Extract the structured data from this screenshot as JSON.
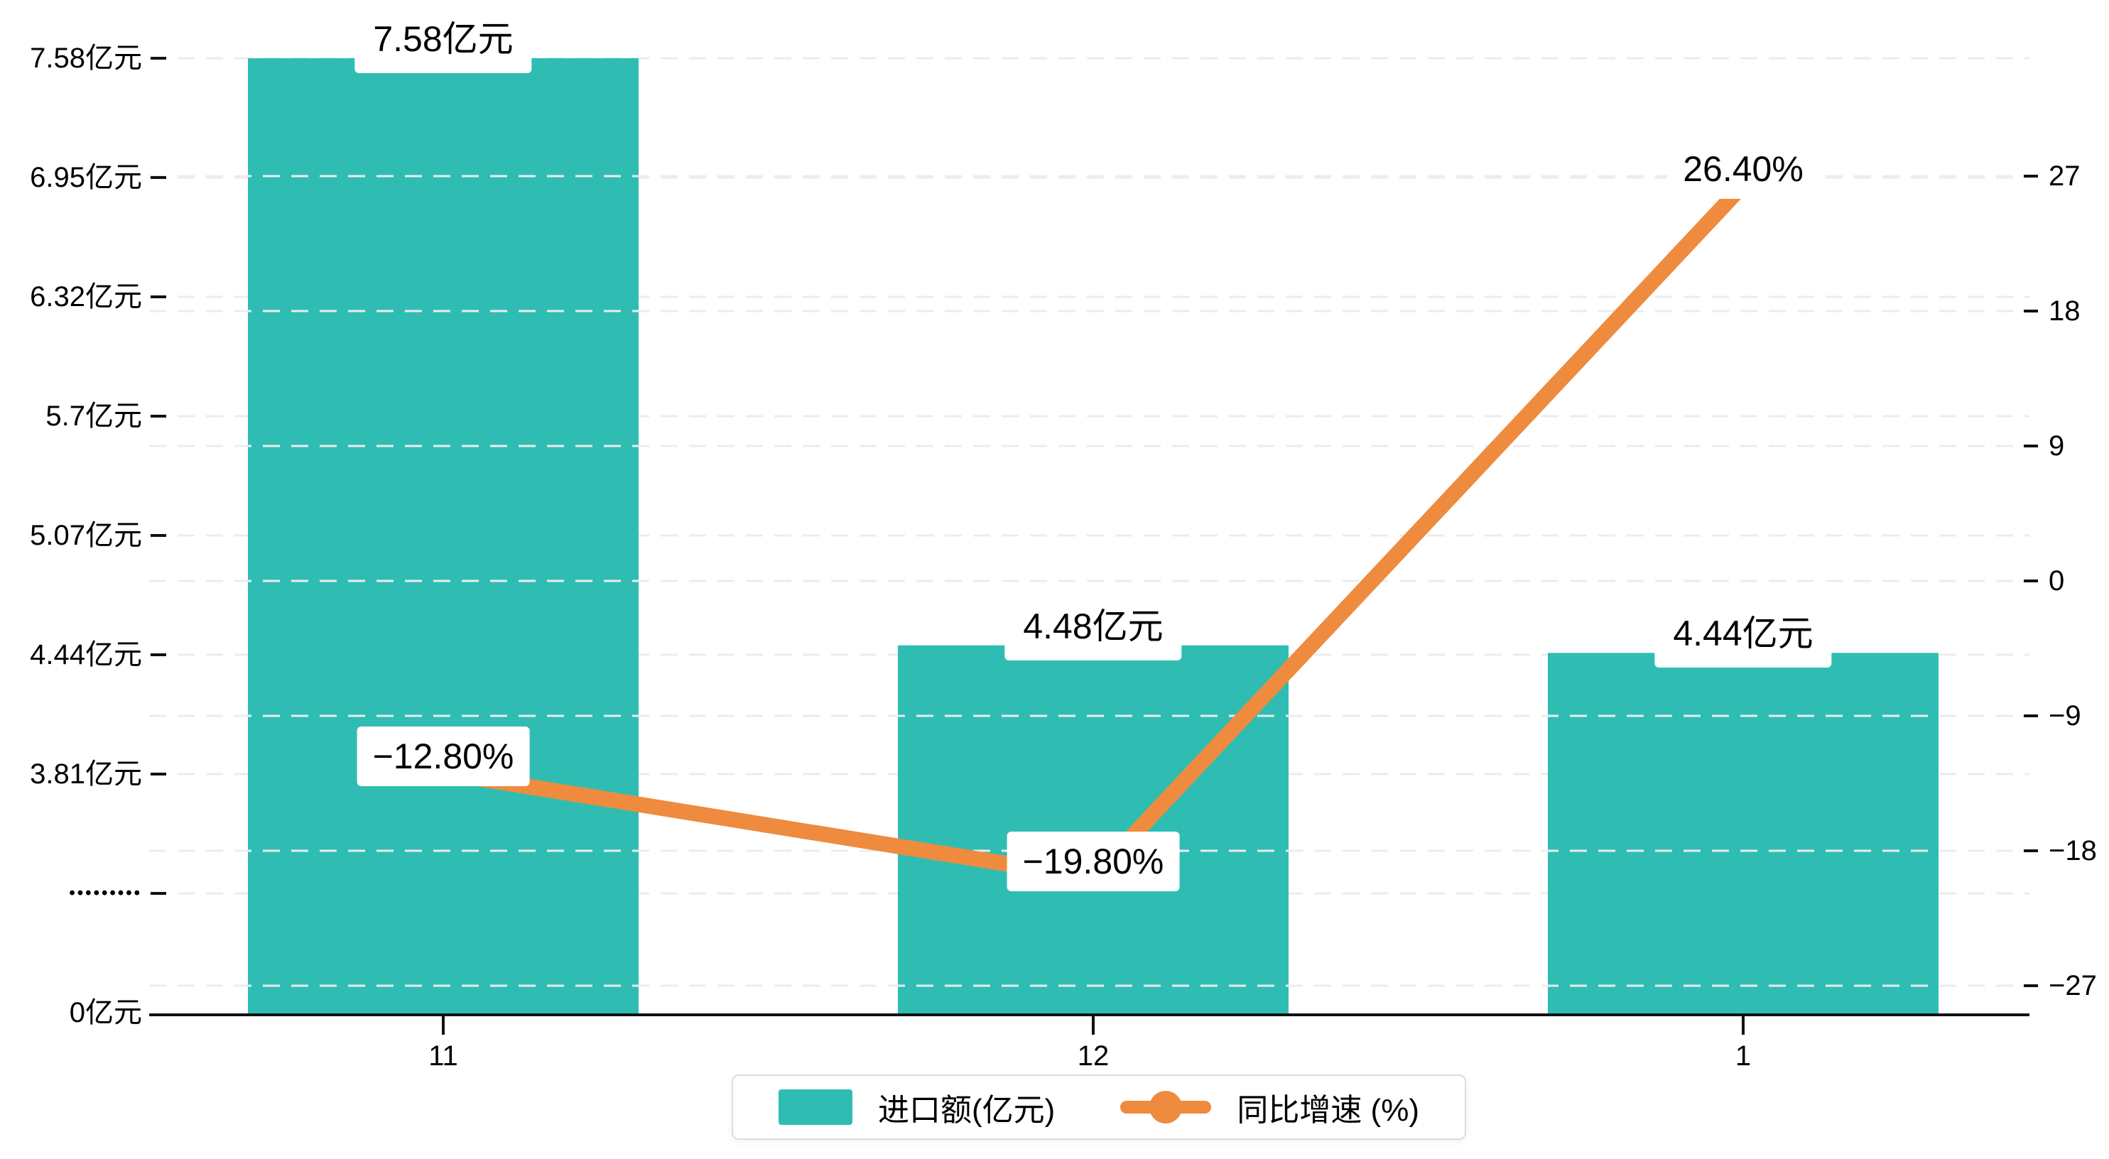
{
  "chart_data": {
    "type": "combo",
    "categories": [
      "11",
      "12",
      "1"
    ],
    "series": [
      {
        "name": "进口额(亿元)",
        "type": "bar",
        "axis": "left",
        "values": [
          7.58,
          4.48,
          4.44
        ],
        "data_labels": [
          "7.58亿元",
          "4.48亿元",
          "4.44亿元"
        ],
        "color": "#2fbdb3"
      },
      {
        "name": "同比增速 (%)",
        "type": "line",
        "axis": "right",
        "values": [
          -12.8,
          -19.8,
          26.4
        ],
        "data_labels": [
          "−12.80%",
          "−19.80%",
          "26.40%"
        ],
        "color": "#ee8b3e"
      }
    ],
    "left_axis": {
      "tick_labels": [
        "7.58亿元",
        "6.95亿元",
        "6.32亿元",
        "5.7亿元",
        "5.07亿元",
        "4.44亿元",
        "3.81亿元",
        "•••••••••",
        "0亿元"
      ],
      "tick_values": [
        7.58,
        6.95,
        6.32,
        5.7,
        5.07,
        4.44,
        3.81,
        null,
        0
      ],
      "axis_break": true
    },
    "right_axis": {
      "tick_labels": [
        "27",
        "18",
        "9",
        "0",
        "−9",
        "−18",
        "−27"
      ],
      "tick_values": [
        27,
        18,
        9,
        0,
        -9,
        -18,
        -27
      ],
      "range": [
        -27,
        27
      ]
    },
    "grid": {
      "style": "dashed",
      "color": "#ececec"
    },
    "legend_position": "bottom"
  },
  "legend": {
    "items": [
      {
        "label": "进口额(亿元)",
        "marker": "square",
        "color": "#2fbdb3"
      },
      {
        "label": "同比增速 (%)",
        "marker": "line-dot",
        "color": "#ee8b3e"
      }
    ]
  },
  "colors": {
    "bar": "#2fbdb3",
    "line": "#ee8b3e",
    "grid": "#ececec",
    "axis": "#111111",
    "text": "#000000",
    "label_bg": "#ffffff",
    "legend_border": "#dcdcdc"
  }
}
